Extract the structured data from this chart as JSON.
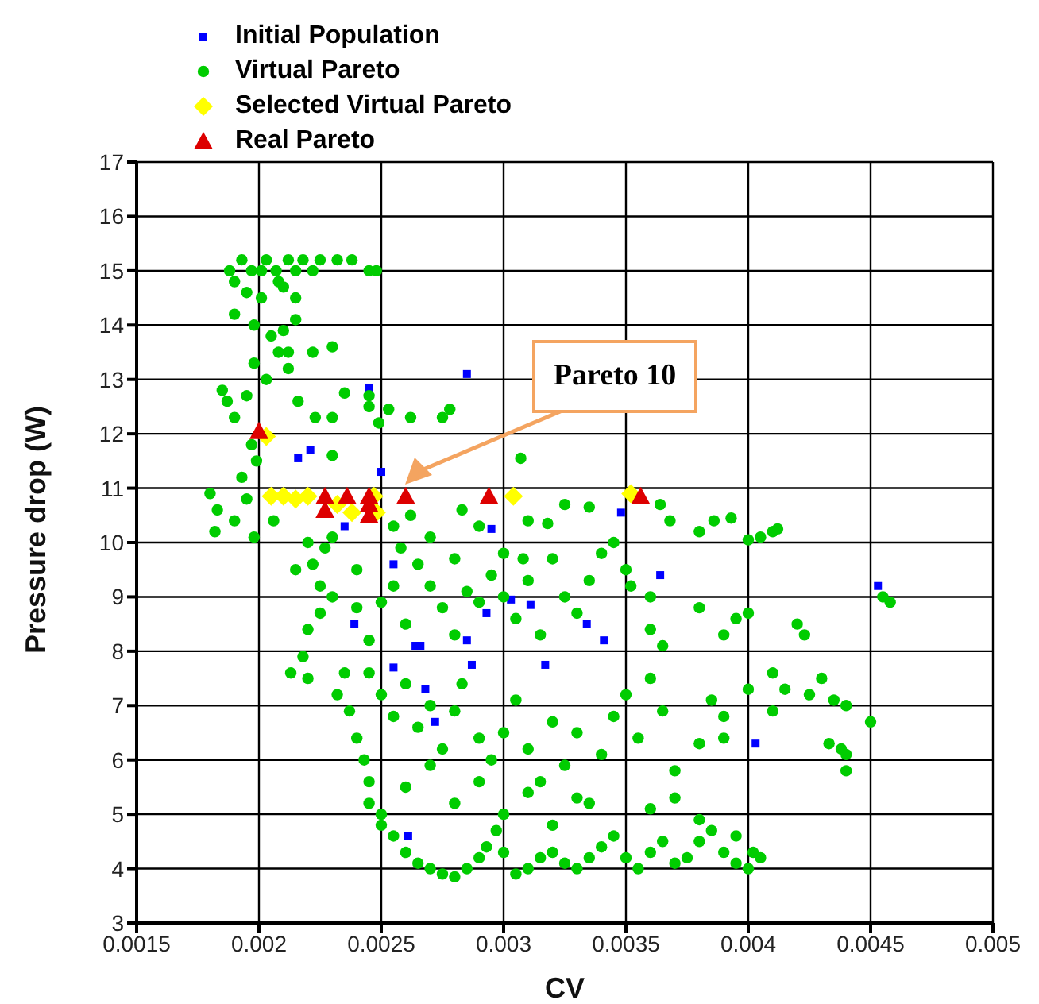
{
  "chart_data": {
    "type": "scatter",
    "xlabel": "CV",
    "ylabel": "Pressure drop (W)",
    "xlim": [
      0.0015,
      0.005
    ],
    "ylim": [
      3,
      17
    ],
    "xticks": [
      0.0015,
      0.002,
      0.0025,
      0.003,
      0.0035,
      0.004,
      0.0045,
      0.005
    ],
    "yticks": [
      3,
      4,
      5,
      6,
      7,
      8,
      9,
      10,
      11,
      12,
      13,
      14,
      15,
      16,
      17
    ],
    "grid": true,
    "legend": "top left",
    "annotations": [
      "Pareto 10"
    ],
    "series": [
      {
        "name": "Initial Population",
        "color": "#0000ff",
        "marker": "square",
        "x": [
          0.00285,
          0.00245,
          0.00221,
          0.00216,
          0.0025,
          0.00295,
          0.00235,
          0.00348,
          0.00255,
          0.00239,
          0.00264,
          0.00266,
          0.00255,
          0.00268,
          0.00285,
          0.00287,
          0.00293,
          0.00303,
          0.00311,
          0.00317,
          0.00272,
          0.00261,
          0.00334,
          0.00341,
          0.00403,
          0.00453,
          0.00364
        ],
        "values": [
          13.1,
          12.85,
          11.7,
          11.55,
          11.3,
          10.25,
          10.3,
          10.55,
          9.6,
          8.5,
          8.1,
          8.1,
          7.7,
          7.3,
          8.2,
          7.75,
          8.7,
          8.95,
          8.85,
          7.75,
          6.7,
          4.6,
          8.5,
          8.2,
          6.3,
          9.2,
          9.4
        ]
      },
      {
        "name": "Virtual Pareto",
        "color": "#00cc00",
        "marker": "circle",
        "x": [
          0.00193,
          0.00203,
          0.00212,
          0.00218,
          0.00225,
          0.00232,
          0.00238,
          0.00188,
          0.00197,
          0.00201,
          0.00207,
          0.00215,
          0.00222,
          0.00245,
          0.00248,
          0.0019,
          0.00195,
          0.00201,
          0.00208,
          0.0021,
          0.00215,
          0.0019,
          0.00198,
          0.00205,
          0.0021,
          0.00215,
          0.00208,
          0.00212,
          0.00222,
          0.0023,
          0.00198,
          0.00203,
          0.00212,
          0.00195,
          0.00187,
          0.00185,
          0.0019,
          0.00197,
          0.00199,
          0.00193,
          0.0018,
          0.00183,
          0.0019,
          0.00198,
          0.00182,
          0.00195,
          0.00206,
          0.00235,
          0.00245,
          0.00245,
          0.00216,
          0.00223,
          0.0023,
          0.00253,
          0.00262,
          0.00275,
          0.00278,
          0.00249,
          0.0023,
          0.00307,
          0.00364,
          0.00386,
          0.00393,
          0.0041,
          0.00412,
          0.0022,
          0.00213,
          0.00218,
          0.0022,
          0.00225,
          0.00225,
          0.00222,
          0.0022,
          0.00215,
          0.00227,
          0.00232,
          0.00237,
          0.00235,
          0.0024,
          0.00243,
          0.00245,
          0.00245,
          0.0025,
          0.0025,
          0.00255,
          0.0026,
          0.00265,
          0.0027,
          0.00275,
          0.0028,
          0.00285,
          0.0029,
          0.00293,
          0.00297,
          0.003,
          0.00305,
          0.0031,
          0.00315,
          0.0032,
          0.00325,
          0.0033,
          0.00335,
          0.0034,
          0.00345,
          0.0035,
          0.00355,
          0.0036,
          0.00365,
          0.0037,
          0.00375,
          0.0038,
          0.00385,
          0.0039,
          0.00395,
          0.004,
          0.00402,
          0.00405,
          0.00395,
          0.0023,
          0.0024,
          0.0024,
          0.00245,
          0.0025,
          0.00255,
          0.00258,
          0.0026,
          0.00265,
          0.0027,
          0.00275,
          0.0028,
          0.0028,
          0.00285,
          0.0029,
          0.00295,
          0.003,
          0.003,
          0.00305,
          0.00308,
          0.0031,
          0.00315,
          0.0032,
          0.00325,
          0.0033,
          0.00335,
          0.0034,
          0.0035,
          0.00352,
          0.00245,
          0.0025,
          0.00255,
          0.0026,
          0.00265,
          0.0027,
          0.00275,
          0.0028,
          0.00283,
          0.0029,
          0.00295,
          0.003,
          0.00305,
          0.0031,
          0.00315,
          0.0032,
          0.00325,
          0.0033,
          0.00335,
          0.0034,
          0.00345,
          0.0035,
          0.00355,
          0.0036,
          0.00365,
          0.0037,
          0.0038,
          0.00385,
          0.0039,
          0.0026,
          0.0027,
          0.0028,
          0.0029,
          0.003,
          0.0031,
          0.0032,
          0.0033,
          0.0036,
          0.0037,
          0.0038,
          0.0036,
          0.0036,
          0.00365,
          0.0038,
          0.0039,
          0.00395,
          0.004,
          0.0042,
          0.00423,
          0.0041,
          0.00415,
          0.0043,
          0.00435,
          0.0044,
          0.00425,
          0.0045,
          0.0039,
          0.004,
          0.0041,
          0.00433,
          0.0044,
          0.0044,
          0.00438,
          0.00455,
          0.00458,
          0.00405,
          0.004,
          0.0038,
          0.00368,
          0.00345,
          0.0023,
          0.00255,
          0.00262,
          0.0027,
          0.00283,
          0.0029,
          0.0031,
          0.00318,
          0.00325,
          0.00335
        ],
        "values": [
          15.2,
          15.2,
          15.2,
          15.2,
          15.2,
          15.2,
          15.2,
          15,
          15,
          15,
          15,
          15,
          15,
          15,
          15,
          14.8,
          14.6,
          14.5,
          14.8,
          14.7,
          14.5,
          14.2,
          14,
          13.8,
          13.9,
          14.1,
          13.5,
          13.5,
          13.5,
          13.6,
          13.3,
          13,
          13.2,
          12.7,
          12.6,
          12.8,
          12.3,
          11.8,
          11.5,
          11.2,
          10.9,
          10.6,
          10.4,
          10.1,
          10.2,
          10.8,
          10.4,
          12.75,
          12.7,
          12.5,
          12.6,
          12.3,
          12.3,
          12.45,
          12.3,
          12.3,
          12.45,
          12.2,
          11.6,
          11.55,
          10.7,
          10.4,
          10.45,
          10.2,
          10.25,
          7.5,
          7.6,
          7.9,
          8.4,
          8.7,
          9.2,
          9.6,
          10,
          9.5,
          9.9,
          7.2,
          6.9,
          7.6,
          6.4,
          6,
          5.6,
          5.2,
          5,
          4.8,
          4.6,
          4.3,
          4.1,
          4,
          3.9,
          3.85,
          4,
          4.2,
          4.4,
          4.7,
          4.3,
          3.9,
          4,
          4.2,
          4.3,
          4.1,
          4,
          4.2,
          4.4,
          4.6,
          4.2,
          4,
          4.3,
          4.5,
          4.1,
          4.2,
          4.5,
          4.7,
          4.3,
          4.6,
          4,
          4.3,
          4.2,
          4.1,
          9,
          9.5,
          8.8,
          8.2,
          8.9,
          9.2,
          9.9,
          8.5,
          9.6,
          9.2,
          8.8,
          9.7,
          8.3,
          9.1,
          8.9,
          9.4,
          9.8,
          9,
          8.6,
          9.7,
          9.3,
          8.3,
          9.7,
          9,
          8.7,
          9.3,
          9.8,
          9.5,
          9.2,
          7.6,
          7.2,
          6.8,
          7.4,
          6.6,
          7,
          6.2,
          6.9,
          7.4,
          6.4,
          6,
          6.5,
          7.1,
          6.2,
          5.6,
          6.7,
          5.9,
          6.5,
          5.2,
          6.1,
          6.8,
          7.2,
          6.4,
          7.5,
          6.9,
          5.8,
          6.3,
          7.1,
          6.8,
          5.5,
          5.9,
          5.2,
          5.6,
          5,
          5.4,
          4.8,
          5.3,
          5.1,
          5.3,
          4.9,
          8.4,
          9,
          8.1,
          8.8,
          8.3,
          8.6,
          8.7,
          8.5,
          8.3,
          7.6,
          7.3,
          7.5,
          7.1,
          7,
          7.2,
          6.7,
          6.4,
          7.3,
          6.9,
          6.3,
          6.1,
          5.8,
          6.2,
          9,
          8.9,
          10.1,
          10.05,
          10.2,
          10.4,
          10,
          10.1,
          10.3,
          10.5,
          10.1,
          10.6,
          10.3,
          10.4,
          10.35,
          10.7,
          10.65
        ]
      },
      {
        "name": "Selected Virtual Pareto",
        "color": "#ffff00",
        "marker": "diamond",
        "x": [
          0.00203,
          0.00205,
          0.0021,
          0.00215,
          0.0022,
          0.00232,
          0.00238,
          0.00247,
          0.00248,
          0.00304,
          0.00352
        ],
        "values": [
          11.95,
          10.85,
          10.85,
          10.8,
          10.85,
          10.7,
          10.55,
          10.85,
          10.55,
          10.85,
          10.9
        ]
      },
      {
        "name": "Real Pareto",
        "color": "#dd0000",
        "marker": "triangle",
        "x": [
          0.002,
          0.00227,
          0.00236,
          0.00245,
          0.00227,
          0.00245,
          0.00245,
          0.0026,
          0.00294,
          0.00356
        ],
        "values": [
          12.05,
          10.85,
          10.85,
          10.85,
          10.6,
          10.5,
          10.7,
          10.85,
          10.85,
          10.85
        ]
      }
    ]
  }
}
